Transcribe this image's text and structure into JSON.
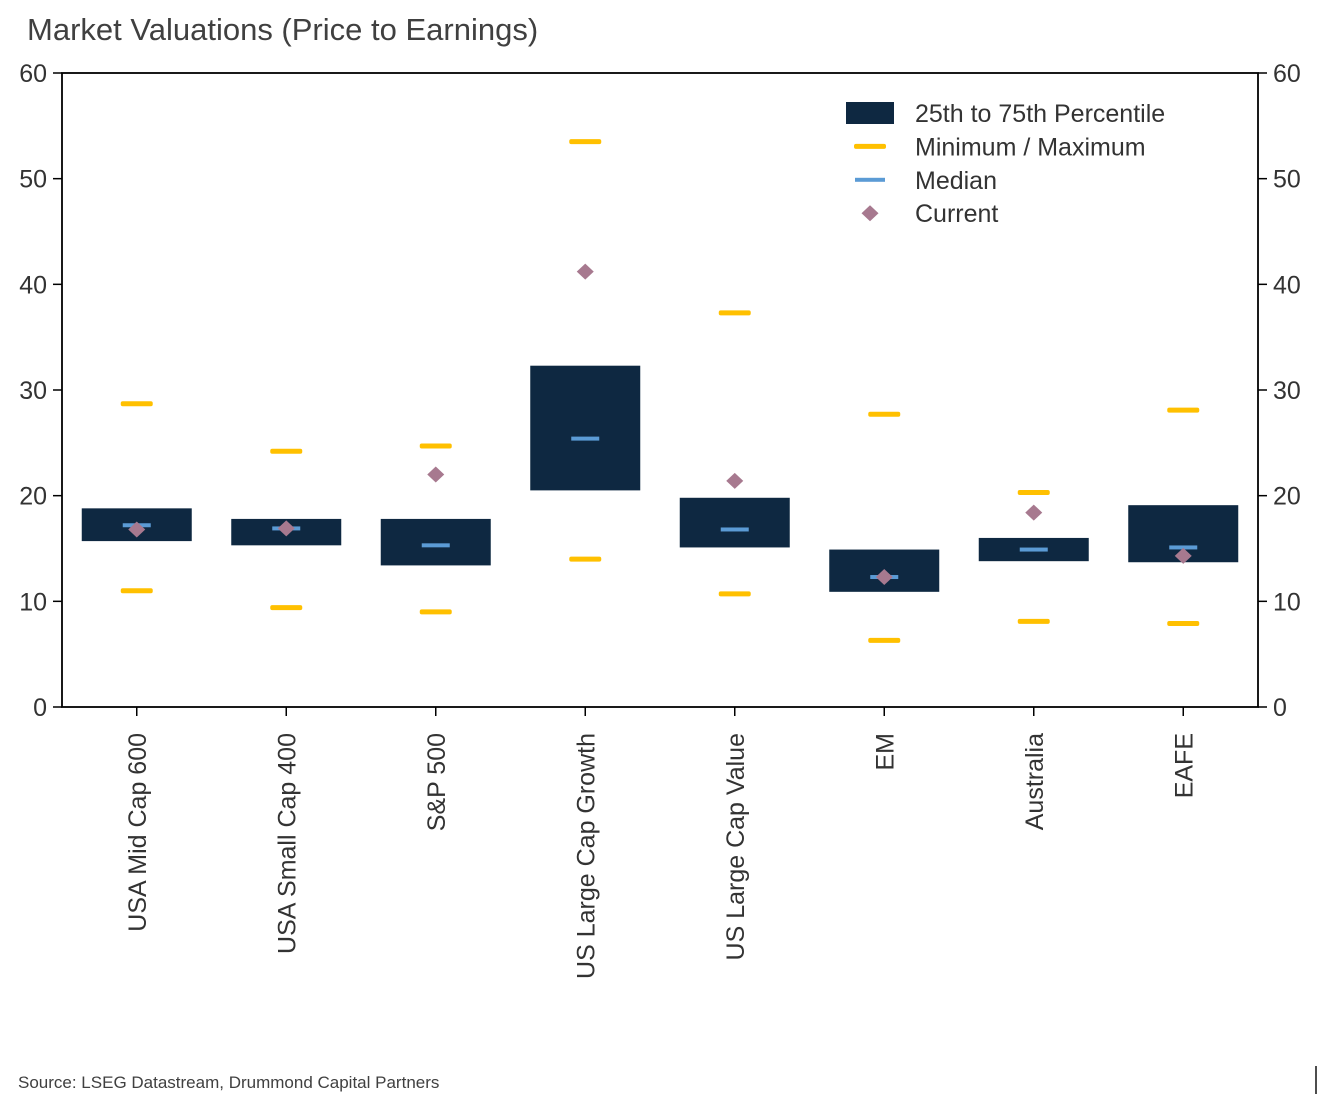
{
  "title": "Market Valuations (Price to Earnings)",
  "source": "Source: LSEG Datastream, Drummond Capital Partners",
  "colors": {
    "box": "#0e2841",
    "minmax": "#ffc000",
    "median": "#5b9bd5",
    "current": "#a7798f",
    "axis": "#000000",
    "tick_text": "#333333",
    "title_text": "#404040"
  },
  "legend": [
    {
      "type": "box",
      "label": "25th to 75th Percentile"
    },
    {
      "type": "minmax",
      "label": "Minimum / Maximum"
    },
    {
      "type": "median",
      "label": "Median"
    },
    {
      "type": "current",
      "label": "Current"
    }
  ],
  "chart_data": {
    "type": "box",
    "title": "Market Valuations (Price to Earnings)",
    "ylabel": "",
    "xlabel": "",
    "ylim": [
      0,
      60
    ],
    "yticks": [
      0,
      10,
      20,
      30,
      40,
      50,
      60
    ],
    "grid": false,
    "legend_position": "top-right-inside",
    "categories": [
      "USA Mid Cap 600",
      "USA Small Cap 400",
      "S&P 500",
      "US Large Cap Growth",
      "US Large Cap Value",
      "EM",
      "Australia",
      "EAFE"
    ],
    "series": [
      {
        "name": "USA Mid Cap 600",
        "min": 11.0,
        "max": 28.7,
        "p25": 15.7,
        "p75": 18.8,
        "median": 17.2,
        "current": 16.8
      },
      {
        "name": "USA Small Cap 400",
        "min": 9.4,
        "max": 24.2,
        "p25": 15.3,
        "p75": 17.8,
        "median": 16.9,
        "current": 16.9
      },
      {
        "name": "S&P 500",
        "min": 9.0,
        "max": 24.7,
        "p25": 13.4,
        "p75": 17.8,
        "median": 15.3,
        "current": 22.0
      },
      {
        "name": "US Large Cap Growth",
        "min": 14.0,
        "max": 53.5,
        "p25": 20.5,
        "p75": 32.3,
        "median": 25.4,
        "current": 41.2
      },
      {
        "name": "US Large Cap Value",
        "min": 10.7,
        "max": 37.3,
        "p25": 15.1,
        "p75": 19.8,
        "median": 16.8,
        "current": 21.4
      },
      {
        "name": "EM",
        "min": 6.3,
        "max": 27.7,
        "p25": 10.9,
        "p75": 14.9,
        "median": 12.3,
        "current": 12.3
      },
      {
        "name": "Australia",
        "min": 8.1,
        "max": 20.3,
        "p25": 13.8,
        "p75": 16.0,
        "median": 14.9,
        "current": 18.4
      },
      {
        "name": "EAFE",
        "min": 7.9,
        "max": 28.1,
        "p25": 13.7,
        "p75": 19.1,
        "median": 15.1,
        "current": 14.3
      }
    ]
  }
}
